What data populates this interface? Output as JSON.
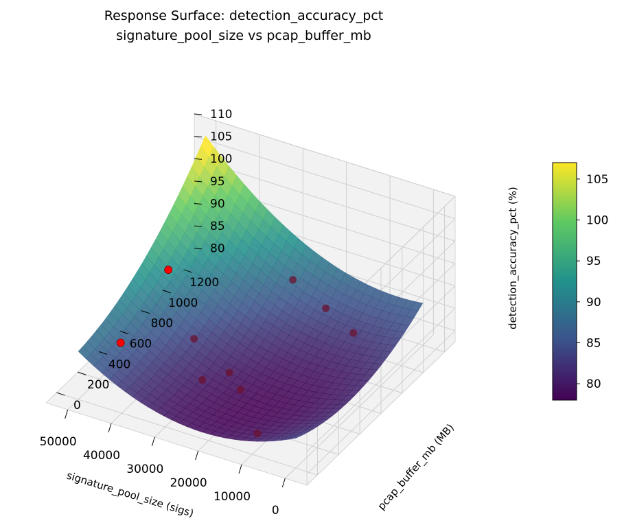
{
  "chart_data": {
    "type": "surface",
    "title": "Response Surface: detection_accuracy_pct",
    "subtitle": "signature_pool_size vs pcap_buffer_mb",
    "xlabel": "signature_pool_size (sigs)",
    "ylabel": "pcap_buffer_mb (MB)",
    "zlabel": "detection_accuracy_pct (%)",
    "xlim": [
      -5000,
      55000
    ],
    "ylim": [
      -100,
      1300
    ],
    "zlim": [
      77.5,
      110
    ],
    "x_ticks": [
      "0",
      "10000",
      "20000",
      "30000",
      "40000",
      "50000"
    ],
    "y_ticks": [
      "0",
      "200",
      "400",
      "600",
      "800",
      "1000",
      "1200"
    ],
    "z_ticks": [
      "80",
      "85",
      "90",
      "95",
      "100",
      "105",
      "110"
    ],
    "colormap": "viridis",
    "colorbar": {
      "min": 78,
      "max": 107,
      "ticks": [
        "80",
        "85",
        "90",
        "95",
        "100",
        "105"
      ],
      "colors": [
        "#440154",
        "#3b528b",
        "#21918c",
        "#5ec962",
        "#fde725"
      ]
    },
    "surface_range": {
      "x": [
        0,
        50000
      ],
      "y": [
        0,
        1200
      ]
    },
    "observed_points_below_surface": [
      {
        "x": 5000,
        "y": 750,
        "z": 89
      },
      {
        "x": 15000,
        "y": 900,
        "z": 88
      },
      {
        "x": 25000,
        "y": 1000,
        "z": 89
      },
      {
        "x": 20000,
        "y": 300,
        "z": 82
      },
      {
        "x": 25000,
        "y": 400,
        "z": 82
      },
      {
        "x": 30000,
        "y": 350,
        "z": 80
      },
      {
        "x": 38000,
        "y": 600,
        "z": 81
      },
      {
        "x": 10000,
        "y": 50,
        "z": 81
      }
    ],
    "observed_points_above_surface": [
      {
        "x": 50000,
        "y": 850,
        "z": 87
      },
      {
        "x": 50000,
        "y": 400,
        "z": 81
      }
    ],
    "point_colors": {
      "below": "#6b1230",
      "above": "#ff0000"
    }
  }
}
